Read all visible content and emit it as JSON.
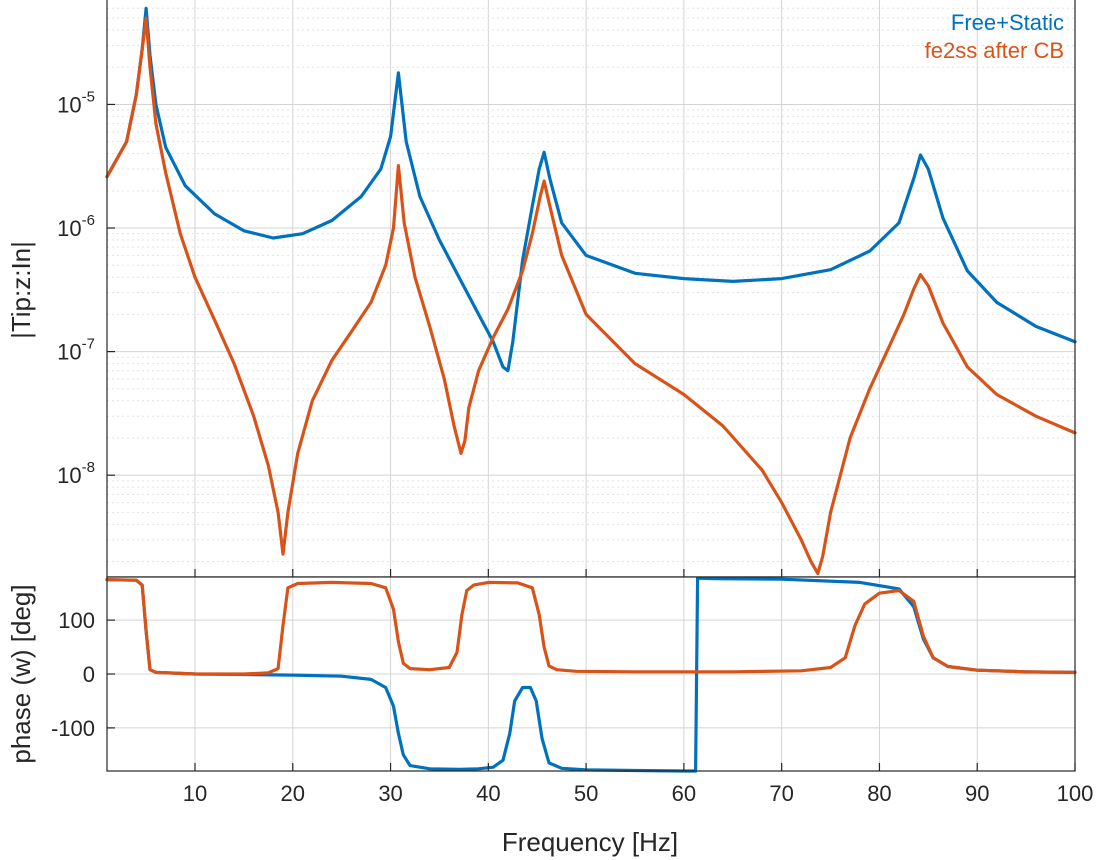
{
  "chart_data": [
    {
      "type": "line",
      "panel": "magnitude",
      "yscale": "log",
      "xlabel": "",
      "ylabel": "|Tip:z:In|",
      "xlim": [
        1,
        100
      ],
      "ylim": [
        1.5e-09,
        7e-05
      ],
      "ytick_values": [
        1e-08,
        1e-07,
        1e-06,
        1e-05
      ],
      "ytick_labels": [
        {
          "base": "10",
          "exp": "-8"
        },
        {
          "base": "10",
          "exp": "-7"
        },
        {
          "base": "10",
          "exp": "-6"
        },
        {
          "base": "10",
          "exp": "-5"
        }
      ],
      "grid": true,
      "legend_position": "top-right",
      "series": [
        {
          "name": "Free+Static",
          "color": "#0072BD",
          "x": [
            1,
            3,
            4,
            4.6,
            5,
            5.4,
            6,
            7,
            9,
            12,
            15,
            18,
            21,
            24,
            27,
            29,
            30,
            30.8,
            31.6,
            33,
            35,
            37,
            39,
            40.5,
            41.5,
            42,
            42.5,
            43.5,
            44.5,
            45.2,
            45.7,
            46.3,
            47.5,
            50,
            55,
            60,
            65,
            70,
            75,
            79,
            82,
            83.5,
            84.2,
            85,
            86.5,
            89,
            92,
            96,
            100
          ],
          "y": [
            2.6e-06,
            5e-06,
            1.2e-05,
            2.8e-05,
            6e-05,
            2.5e-05,
            1e-05,
            4.5e-06,
            2.2e-06,
            1.3e-06,
            9.5e-07,
            8.3e-07,
            9e-07,
            1.15e-06,
            1.8e-06,
            3e-06,
            5.5e-06,
            1.8e-05,
            5e-06,
            1.8e-06,
            8e-07,
            4e-07,
            2e-07,
            1.2e-07,
            7.5e-08,
            7e-08,
            1.2e-07,
            5.5e-07,
            1.5e-06,
            3e-06,
            4.1e-06,
            2.5e-06,
            1.1e-06,
            6e-07,
            4.3e-07,
            3.9e-07,
            3.7e-07,
            3.9e-07,
            4.6e-07,
            6.5e-07,
            1.1e-06,
            2.5e-06,
            3.9e-06,
            3e-06,
            1.2e-06,
            4.5e-07,
            2.5e-07,
            1.6e-07,
            1.2e-07
          ]
        },
        {
          "name": "fe2ss after CB",
          "color": "#D95319",
          "x": [
            1,
            3,
            4,
            4.6,
            5,
            5.4,
            6,
            7,
            8.5,
            10,
            12,
            14,
            16,
            17.5,
            18.5,
            19,
            19.5,
            20.5,
            22,
            24,
            26,
            28,
            29.5,
            30.3,
            30.8,
            31.4,
            32.5,
            34,
            35.5,
            36.5,
            37.2,
            37.6,
            38,
            39,
            40.5,
            42,
            43.5,
            44.5,
            45.3,
            45.7,
            46.3,
            47.5,
            50,
            55,
            60,
            64,
            68,
            70,
            72,
            73,
            73.7,
            74.2,
            75,
            77,
            79,
            81,
            82.5,
            83.5,
            84.2,
            85,
            86.5,
            89,
            92,
            96,
            100
          ],
          "y": [
            2.6e-06,
            5e-06,
            1.2e-05,
            2.8e-05,
            5e-05,
            2e-05,
            7e-06,
            2.8e-06,
            9e-07,
            4e-07,
            1.8e-07,
            8e-08,
            3e-08,
            1.2e-08,
            5e-09,
            2.3e-09,
            5e-09,
            1.5e-08,
            4e-08,
            8.5e-08,
            1.45e-07,
            2.5e-07,
            5e-07,
            1e-06,
            3.2e-06,
            1.1e-06,
            4e-07,
            1.6e-07,
            6e-08,
            2.5e-08,
            1.5e-08,
            1.9e-08,
            3.5e-08,
            7e-08,
            1.3e-07,
            2.2e-07,
            4.5e-07,
            9e-07,
            1.8e-06,
            2.4e-06,
            1.5e-06,
            6e-07,
            2e-07,
            8e-08,
            4.5e-08,
            2.5e-08,
            1.1e-08,
            6e-09,
            3e-09,
            2e-09,
            1.6e-09,
            2.2e-09,
            5e-09,
            2e-08,
            5e-08,
            1.1e-07,
            2e-07,
            3.2e-07,
            4.2e-07,
            3.4e-07,
            1.7e-07,
            7.5e-08,
            4.5e-08,
            3e-08,
            2.2e-08
          ]
        }
      ]
    },
    {
      "type": "line",
      "panel": "phase",
      "yscale": "linear",
      "xlabel": "Frequency [Hz]",
      "ylabel": "phase (w) [deg]",
      "xlim": [
        1,
        100
      ],
      "ylim": [
        -180,
        180
      ],
      "ytick_values": [
        -100,
        0,
        100
      ],
      "ytick_labels": [
        "-100",
        "0",
        "100"
      ],
      "xtick_values": [
        10,
        20,
        30,
        40,
        50,
        60,
        70,
        80,
        90,
        100
      ],
      "xtick_labels": [
        "10",
        "20",
        "30",
        "40",
        "50",
        "60",
        "70",
        "80",
        "90",
        "100"
      ],
      "grid": true,
      "series": [
        {
          "name": "Free+Static",
          "color": "#0072BD",
          "x": [
            1,
            4,
            4.6,
            5,
            5.4,
            6,
            10,
            15,
            20,
            25,
            28,
            29.5,
            30.3,
            30.8,
            31.3,
            32,
            34,
            37,
            39,
            40.5,
            41.5,
            42.2,
            42.7,
            43.5,
            44.3,
            44.9,
            45.5,
            46.2,
            47.5,
            50,
            55,
            60,
            61.2,
            61.4,
            63,
            70,
            78,
            82,
            83.5,
            84.5,
            85.5,
            87,
            90,
            95,
            100
          ],
          "y": [
            175,
            174,
            165,
            80,
            8,
            3,
            0,
            -1,
            -2,
            -4,
            -10,
            -25,
            -60,
            -110,
            -150,
            -170,
            -176,
            -177,
            -176,
            -173,
            -160,
            -110,
            -50,
            -25,
            -25,
            -50,
            -120,
            -165,
            -175,
            -178,
            -179,
            -180,
            -180,
            178,
            177,
            176,
            170,
            158,
            125,
            65,
            30,
            14,
            7,
            4,
            3
          ]
        },
        {
          "name": "fe2ss after CB",
          "color": "#D95319",
          "x": [
            1,
            4,
            4.6,
            5,
            5.4,
            6,
            10,
            15,
            17.5,
            18.5,
            19,
            19.5,
            20.5,
            24,
            28,
            29.5,
            30.3,
            30.8,
            31.3,
            32,
            34,
            36,
            36.8,
            37.3,
            37.8,
            38.5,
            40,
            43,
            44.5,
            45.2,
            45.7,
            46.2,
            47,
            49,
            55,
            65,
            72,
            75,
            76.5,
            77.5,
            78.5,
            80,
            82,
            83.5,
            84.5,
            85.5,
            87,
            90,
            95,
            100
          ],
          "y": [
            175,
            174,
            165,
            80,
            8,
            3,
            0,
            0,
            2,
            10,
            90,
            160,
            168,
            170,
            168,
            160,
            120,
            60,
            20,
            10,
            8,
            12,
            40,
            110,
            155,
            165,
            170,
            169,
            160,
            110,
            50,
            15,
            8,
            5,
            4,
            4,
            6,
            12,
            30,
            90,
            130,
            150,
            155,
            135,
            70,
            30,
            14,
            7,
            4,
            3
          ]
        }
      ]
    }
  ]
}
